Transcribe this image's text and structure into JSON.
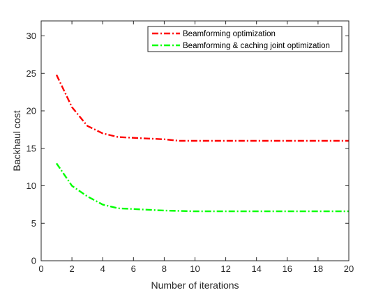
{
  "chart_data": {
    "type": "line",
    "xlabel": "Number of iterations",
    "ylabel": "Backhaul cost",
    "xlim": [
      0,
      20
    ],
    "ylim": [
      0,
      32
    ],
    "xticks": [
      "0",
      "2",
      "4",
      "6",
      "8",
      "10",
      "12",
      "14",
      "16",
      "18",
      "20"
    ],
    "yticks": [
      "0",
      "5",
      "10",
      "15",
      "20",
      "25",
      "30"
    ],
    "grid": false,
    "legend_position": "top-right",
    "x": [
      1,
      2,
      3,
      4,
      5,
      6,
      7,
      8,
      9,
      10,
      11,
      12,
      13,
      14,
      15,
      16,
      17,
      18,
      19,
      20
    ],
    "series": [
      {
        "name": "Beamforming optimization",
        "color": "#ff0000",
        "line_style": "dash-dot",
        "values": [
          24.8,
          20.5,
          18.0,
          17.0,
          16.5,
          16.4,
          16.3,
          16.2,
          16.0,
          16.0,
          16.0,
          16.0,
          16.0,
          16.0,
          16.0,
          16.0,
          16.0,
          16.0,
          16.0,
          16.0
        ]
      },
      {
        "name": "Beamforming & caching joint optimization",
        "color": "#00ff00",
        "line_style": "dash-dot",
        "values": [
          13.0,
          10.0,
          8.6,
          7.5,
          7.0,
          6.9,
          6.8,
          6.7,
          6.65,
          6.6,
          6.6,
          6.6,
          6.6,
          6.6,
          6.6,
          6.6,
          6.6,
          6.6,
          6.6,
          6.6
        ]
      }
    ]
  }
}
